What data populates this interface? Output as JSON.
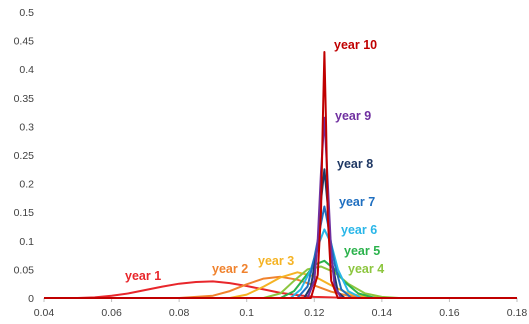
{
  "chart_data": {
    "type": "line",
    "title": "",
    "xlabel": "",
    "ylabel": "",
    "xlim": [
      0.04,
      0.18
    ],
    "ylim": [
      0,
      0.5
    ],
    "xticks": [
      "0.04",
      "0.06",
      "0.08",
      "0.1",
      "0.12",
      "0.14",
      "0.16",
      "0.18"
    ],
    "yticks": [
      "0",
      "0.05",
      "0.1",
      "0.15",
      "0.2",
      "0.25",
      "0.3",
      "0.35",
      "0.4",
      "0.45",
      "0.5"
    ],
    "grid": false,
    "legend": "none (series labelled inline)",
    "series": [
      {
        "name": "year 1",
        "color": "#e8262b",
        "x": [
          0.05,
          0.055,
          0.06,
          0.065,
          0.07,
          0.075,
          0.08,
          0.085,
          0.09,
          0.095,
          0.1,
          0.105,
          0.11,
          0.115,
          0.12,
          0.125,
          0.13,
          0.135
        ],
        "y": [
          0,
          0.001,
          0.004,
          0.008,
          0.014,
          0.02,
          0.025,
          0.028,
          0.029,
          0.026,
          0.021,
          0.015,
          0.009,
          0.005,
          0.002,
          0.001,
          0,
          0
        ]
      },
      {
        "name": "year 2",
        "color": "#f0822d",
        "x": [
          0.08,
          0.09,
          0.095,
          0.1,
          0.105,
          0.11,
          0.115,
          0.12,
          0.125,
          0.13,
          0.135,
          0.14
        ],
        "y": [
          0,
          0.004,
          0.012,
          0.024,
          0.034,
          0.037,
          0.032,
          0.022,
          0.011,
          0.004,
          0.001,
          0
        ]
      },
      {
        "name": "year 3",
        "color": "#f5b324",
        "x": [
          0.095,
          0.1,
          0.105,
          0.11,
          0.115,
          0.12,
          0.125,
          0.13,
          0.135,
          0.14
        ],
        "y": [
          0,
          0.006,
          0.02,
          0.036,
          0.045,
          0.038,
          0.022,
          0.008,
          0.002,
          0
        ]
      },
      {
        "name": "year 4",
        "color": "#8dc63f",
        "x": [
          0.105,
          0.11,
          0.114,
          0.118,
          0.122,
          0.126,
          0.13,
          0.135,
          0.14,
          0.145
        ],
        "y": [
          0,
          0.008,
          0.03,
          0.05,
          0.055,
          0.045,
          0.025,
          0.008,
          0.002,
          0
        ]
      },
      {
        "name": "year 5",
        "color": "#2bb24c",
        "x": [
          0.11,
          0.114,
          0.117,
          0.12,
          0.123,
          0.126,
          0.129,
          0.133,
          0.138
        ],
        "y": [
          0,
          0.012,
          0.035,
          0.058,
          0.065,
          0.05,
          0.028,
          0.008,
          0
        ]
      },
      {
        "name": "year 6",
        "color": "#29b6e8",
        "x": [
          0.113,
          0.116,
          0.119,
          0.121,
          0.123,
          0.125,
          0.127,
          0.13,
          0.134
        ],
        "y": [
          0,
          0.015,
          0.05,
          0.09,
          0.12,
          0.095,
          0.05,
          0.012,
          0
        ]
      },
      {
        "name": "year 7",
        "color": "#1f6fc0",
        "x": [
          0.115,
          0.118,
          0.12,
          0.122,
          0.123,
          0.124,
          0.126,
          0.128,
          0.131
        ],
        "y": [
          0,
          0.02,
          0.07,
          0.13,
          0.16,
          0.13,
          0.06,
          0.015,
          0
        ]
      },
      {
        "name": "year 8",
        "color": "#1f3864",
        "x": [
          0.117,
          0.119,
          0.121,
          0.122,
          0.123,
          0.124,
          0.125,
          0.127,
          0.129
        ],
        "y": [
          0,
          0.02,
          0.09,
          0.17,
          0.225,
          0.16,
          0.07,
          0.01,
          0
        ]
      },
      {
        "name": "year 9",
        "color": "#7030a0",
        "x": [
          0.118,
          0.12,
          0.121,
          0.122,
          0.123,
          0.124,
          0.125,
          0.126,
          0.128
        ],
        "y": [
          0,
          0.03,
          0.1,
          0.22,
          0.315,
          0.2,
          0.08,
          0.02,
          0
        ]
      },
      {
        "name": "year 10",
        "color": "#c00000",
        "x": [
          0.119,
          0.121,
          0.122,
          0.1225,
          0.123,
          0.1235,
          0.124,
          0.125,
          0.127
        ],
        "y": [
          0,
          0.04,
          0.15,
          0.3,
          0.43,
          0.3,
          0.14,
          0.03,
          0
        ]
      }
    ]
  }
}
